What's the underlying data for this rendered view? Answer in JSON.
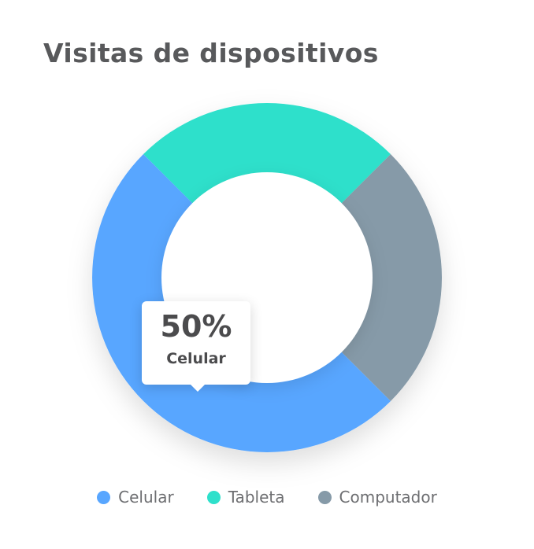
{
  "header": {
    "title": "Visitas de dispositivos"
  },
  "colors": {
    "celular": "#58a6ff",
    "tableta": "#2ee0cb",
    "computador": "#869aa8"
  },
  "tooltip": {
    "value": "50%",
    "label": "Celular"
  },
  "chart_data": {
    "type": "pie",
    "variant": "donut",
    "title": "Visitas de dispositivos",
    "series": [
      {
        "name": "Celular",
        "value": 50,
        "color": "#58a6ff"
      },
      {
        "name": "Tableta",
        "value": 25,
        "color": "#2ee0cb"
      },
      {
        "name": "Computador",
        "value": 25,
        "color": "#869aa8"
      }
    ],
    "legend_position": "bottom",
    "highlighted": "Celular"
  }
}
